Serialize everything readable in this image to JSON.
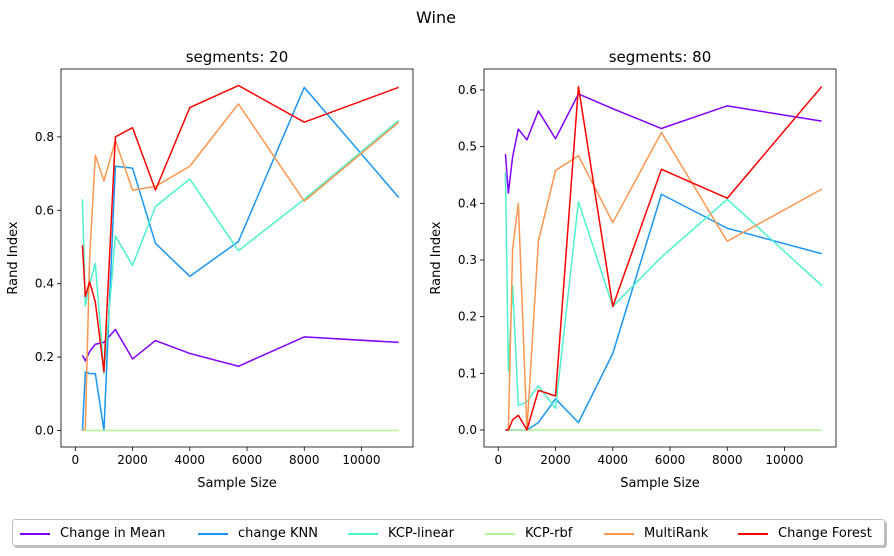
{
  "figure_title": "Wine",
  "chart_data": [
    {
      "type": "line",
      "title": "segments: 20",
      "xlabel": "Sample Size",
      "ylabel": "Rand Index",
      "xlim": [
        -500,
        11800
      ],
      "ylim": [
        -0.045,
        0.985
      ],
      "xticks": [
        0,
        2000,
        4000,
        6000,
        8000,
        10000
      ],
      "yticks": [
        0.0,
        0.2,
        0.4,
        0.6,
        0.8
      ],
      "ytick_decimals": 1,
      "x": [
        250,
        350,
        500,
        700,
        1000,
        1400,
        2000,
        2800,
        4000,
        5700,
        8000,
        11300
      ],
      "series": [
        {
          "name": "Change in Mean",
          "color": "#8000ff",
          "values": [
            0.205,
            0.19,
            0.215,
            0.235,
            0.24,
            0.275,
            0.195,
            0.245,
            0.21,
            0.175,
            0.255,
            0.24
          ]
        },
        {
          "name": "change KNN",
          "color": "#1996f3",
          "values": [
            0.0,
            0.16,
            0.155,
            0.155,
            0.0,
            0.72,
            0.715,
            0.51,
            0.42,
            0.515,
            0.935,
            0.635
          ]
        },
        {
          "name": "KCP-linear",
          "color": "#4df3ce",
          "values": [
            0.63,
            0.34,
            0.4,
            0.455,
            0.155,
            0.53,
            0.45,
            0.61,
            0.685,
            0.49,
            0.63,
            0.845
          ]
        },
        {
          "name": "KCP-rbf",
          "color": "#b2f396",
          "values": [
            0.0,
            0.0,
            0.0,
            0.0,
            0.0,
            0.0,
            0.0,
            0.0,
            0.0,
            0.0,
            0.0,
            0.0
          ]
        },
        {
          "name": "MultiRank",
          "color": "#ff964f",
          "values": [
            0.0,
            0.005,
            0.47,
            0.75,
            0.68,
            0.79,
            0.655,
            0.665,
            0.72,
            0.89,
            0.625,
            0.84
          ]
        },
        {
          "name": "Change Forest",
          "color": "#ff0000",
          "values": [
            0.505,
            0.365,
            0.405,
            0.35,
            0.16,
            0.8,
            0.825,
            0.655,
            0.88,
            0.94,
            0.84,
            0.935
          ]
        }
      ]
    },
    {
      "type": "line",
      "title": "segments: 80",
      "xlabel": "Sample Size",
      "ylabel": "Rand Index",
      "xlim": [
        -500,
        11800
      ],
      "ylim": [
        -0.03,
        0.637
      ],
      "xticks": [
        0,
        2000,
        4000,
        6000,
        8000,
        10000
      ],
      "yticks": [
        0.0,
        0.1,
        0.2,
        0.3,
        0.4,
        0.5,
        0.6
      ],
      "ytick_decimals": 1,
      "x": [
        250,
        350,
        500,
        700,
        1000,
        1400,
        2000,
        2800,
        4000,
        5700,
        8000,
        11300
      ],
      "series": [
        {
          "name": "Change in Mean",
          "color": "#8000ff",
          "values": [
            0.487,
            0.418,
            0.482,
            0.531,
            0.512,
            0.563,
            0.514,
            0.593,
            0.567,
            0.532,
            0.572,
            0.545
          ]
        },
        {
          "name": "change KNN",
          "color": "#1996f3",
          "values": [
            0.0,
            0.0,
            0.0,
            0.0,
            0.0,
            0.013,
            0.055,
            0.013,
            0.135,
            0.416,
            0.356,
            0.311
          ]
        },
        {
          "name": "KCP-linear",
          "color": "#4df3ce",
          "values": [
            0.455,
            0.104,
            0.255,
            0.043,
            0.05,
            0.078,
            0.038,
            0.403,
            0.218,
            0.305,
            0.407,
            0.255
          ]
        },
        {
          "name": "KCP-rbf",
          "color": "#b2f396",
          "values": [
            0.0,
            0.0,
            0.0,
            0.0,
            0.0,
            0.0,
            0.0,
            0.0,
            0.0,
            0.0,
            0.0,
            0.0
          ]
        },
        {
          "name": "MultiRank",
          "color": "#ff964f",
          "values": [
            0.0,
            0.0,
            0.32,
            0.4,
            0.0,
            0.333,
            0.458,
            0.484,
            0.366,
            0.525,
            0.333,
            0.425
          ]
        },
        {
          "name": "Change Forest",
          "color": "#ff0000",
          "values": [
            0.0,
            0.0,
            0.018,
            0.026,
            0.0,
            0.07,
            0.06,
            0.606,
            0.218,
            0.46,
            0.409,
            0.606
          ]
        }
      ]
    }
  ],
  "legend": {
    "placement": "bottom-center",
    "entries": [
      {
        "label": "Change in Mean",
        "color": "#8000ff"
      },
      {
        "label": "change KNN",
        "color": "#1996f3"
      },
      {
        "label": "KCP-linear",
        "color": "#4df3ce"
      },
      {
        "label": "KCP-rbf",
        "color": "#b2f396"
      },
      {
        "label": "MultiRank",
        "color": "#ff964f"
      },
      {
        "label": "Change Forest",
        "color": "#ff0000"
      }
    ]
  }
}
